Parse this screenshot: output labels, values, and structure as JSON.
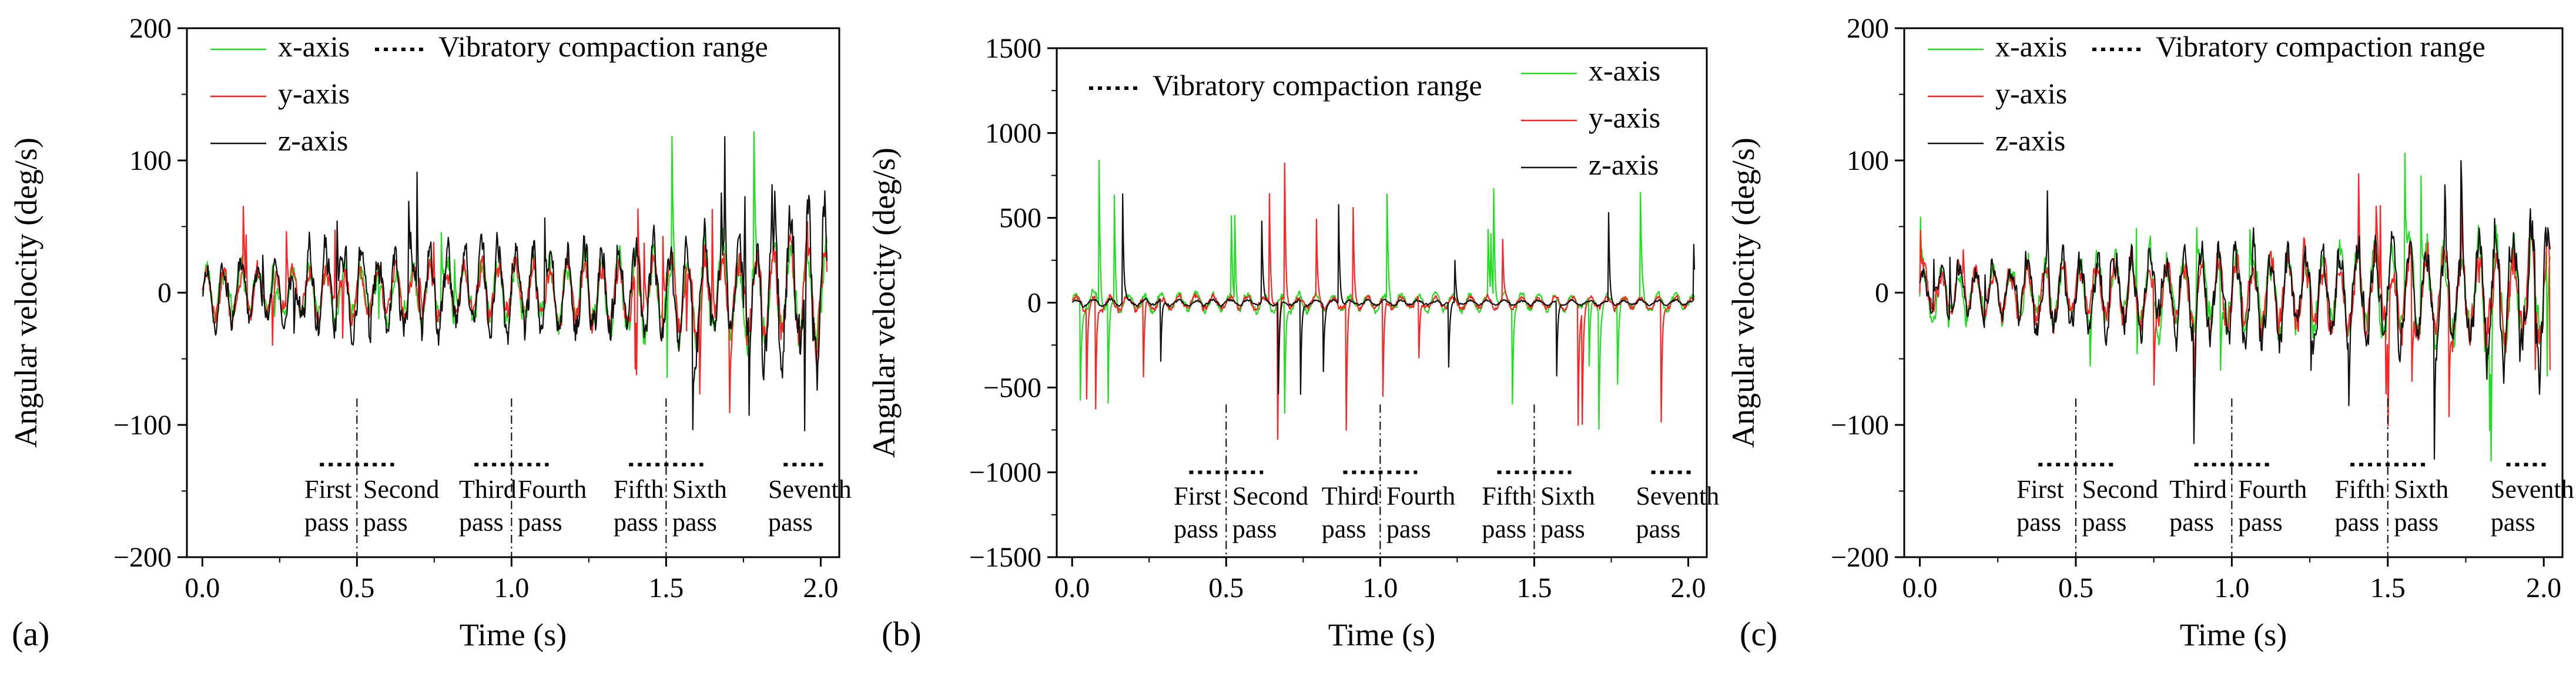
{
  "colors": {
    "x": "#22dd22",
    "y": "#ff2222",
    "z": "#111111",
    "axis": "#000000"
  },
  "chart_data": [
    {
      "type": "line",
      "panel_label": "(a)",
      "xlabel": "Time (s)",
      "ylabel": "Angular velocity (deg/s)",
      "xlim": [
        -0.05,
        2.06
      ],
      "ylim": [
        -200,
        200
      ],
      "xticks": [
        0.0,
        0.5,
        1.0,
        1.5,
        2.0
      ],
      "xtick_labels": [
        "0.0",
        "0.5",
        "1.0",
        "1.5",
        "2.0"
      ],
      "yticks": [
        -200,
        -100,
        0,
        100,
        200
      ],
      "ytick_labels": [
        "−200",
        "−100",
        "0",
        "100",
        "200"
      ],
      "legend": {
        "position": "top",
        "series_labels": [
          "x-axis",
          "y-axis",
          "z-axis"
        ],
        "range_label": "Vibratory compaction range"
      },
      "series": [
        {
          "name": "x-axis",
          "color_key": "x",
          "seed": 11,
          "amp": 32,
          "spike_amp": 75,
          "env": [
            0.7,
            0.75,
            0.8,
            0.9,
            1.1,
            1.3,
            1.4
          ],
          "bias": 0
        },
        {
          "name": "y-axis",
          "color_key": "y",
          "seed": 23,
          "amp": 30,
          "spike_amp": 72,
          "env": [
            0.7,
            0.8,
            0.8,
            0.9,
            1.0,
            1.2,
            1.4
          ],
          "bias": 0
        },
        {
          "name": "z-axis",
          "color_key": "z",
          "seed": 37,
          "amp": 42,
          "spike_amp": 80,
          "env": [
            0.6,
            0.9,
            1.0,
            1.0,
            1.0,
            1.1,
            1.8
          ],
          "bias": 0
        }
      ],
      "ranges": [
        {
          "x0": 0.38,
          "x1": 0.62,
          "y": -130
        },
        {
          "x0": 0.88,
          "x1": 1.12,
          "y": -130
        },
        {
          "x0": 1.38,
          "x1": 1.62,
          "y": -130
        },
        {
          "x0": 1.88,
          "x1": 2.02,
          "y": -130
        }
      ],
      "dividers": [
        {
          "x": 0.5,
          "y0": -80,
          "y1": -200
        },
        {
          "x": 1.0,
          "y0": -80,
          "y1": -200
        },
        {
          "x": 1.5,
          "y0": -80,
          "y1": -200
        }
      ],
      "annotations": [
        {
          "text": [
            "First",
            "pass"
          ],
          "x": 0.33,
          "y": -155,
          "anchor": "start"
        },
        {
          "text": [
            "Second",
            "pass"
          ],
          "x": 0.52,
          "y": -155,
          "anchor": "start"
        },
        {
          "text": [
            "Third",
            "pass"
          ],
          "x": 0.83,
          "y": -155,
          "anchor": "start"
        },
        {
          "text": [
            "Fourth",
            "pass"
          ],
          "x": 1.02,
          "y": -155,
          "anchor": "start"
        },
        {
          "text": [
            "Fifth",
            "pass"
          ],
          "x": 1.33,
          "y": -155,
          "anchor": "start"
        },
        {
          "text": [
            "Sixth",
            "pass"
          ],
          "x": 1.52,
          "y": -155,
          "anchor": "start"
        },
        {
          "text": [
            "Seventh",
            "pass"
          ],
          "x": 1.83,
          "y": -155,
          "anchor": "start"
        }
      ]
    },
    {
      "type": "line",
      "panel_label": "(b)",
      "xlabel": "Time (s)",
      "ylabel": "Angular velocity (deg/s)",
      "xlim": [
        -0.05,
        2.06
      ],
      "ylim": [
        -1500,
        1500
      ],
      "xticks": [
        0.0,
        0.5,
        1.0,
        1.5,
        2.0
      ],
      "xtick_labels": [
        "0.0",
        "0.5",
        "1.0",
        "1.5",
        "2.0"
      ],
      "yticks": [
        -1500,
        -1000,
        -500,
        0,
        500,
        1000,
        1500
      ],
      "ytick_labels": [
        "−1500",
        "−1000",
        "−500",
        "0",
        "500",
        "1000",
        "1500"
      ],
      "legend": {
        "position": "top",
        "series_labels": [
          "x-axis",
          "y-axis",
          "z-axis"
        ],
        "range_label": "Vibratory compaction range"
      },
      "series": [
        {
          "name": "x-axis",
          "color_key": "x",
          "seed": 51,
          "amp": 70,
          "spike_amp": 850,
          "env": [
            1.0,
            0.9,
            0.9,
            0.8,
            0.8,
            0.8,
            0.8
          ],
          "bias": 0
        },
        {
          "name": "y-axis",
          "color_key": "y",
          "seed": 63,
          "amp": 55,
          "spike_amp": 850,
          "env": [
            1.0,
            0.9,
            0.9,
            0.8,
            0.8,
            0.8,
            0.8
          ],
          "bias": 0
        },
        {
          "name": "z-axis",
          "color_key": "z",
          "seed": 77,
          "amp": 25,
          "spike_amp": 700,
          "env": [
            1.0,
            0.9,
            0.8,
            0.8,
            0.7,
            0.7,
            0.7
          ],
          "bias": 0
        }
      ],
      "ranges": [
        {
          "x0": 0.38,
          "x1": 0.62,
          "y": -1000
        },
        {
          "x0": 0.88,
          "x1": 1.12,
          "y": -1000
        },
        {
          "x0": 1.38,
          "x1": 1.62,
          "y": -1000
        },
        {
          "x0": 1.88,
          "x1": 2.02,
          "y": -1000
        }
      ],
      "dividers": [
        {
          "x": 0.5,
          "y0": -600,
          "y1": -1500
        },
        {
          "x": 1.0,
          "y0": -600,
          "y1": -1500
        },
        {
          "x": 1.5,
          "y0": -600,
          "y1": -1500
        }
      ],
      "annotations": [
        {
          "text": [
            "First",
            "pass"
          ],
          "x": 0.33,
          "y": -1190,
          "anchor": "start"
        },
        {
          "text": [
            "Second",
            "pass"
          ],
          "x": 0.52,
          "y": -1190,
          "anchor": "start"
        },
        {
          "text": [
            "Third",
            "pass"
          ],
          "x": 0.81,
          "y": -1190,
          "anchor": "start"
        },
        {
          "text": [
            "Fourth",
            "pass"
          ],
          "x": 1.02,
          "y": -1190,
          "anchor": "start"
        },
        {
          "text": [
            "Fifth",
            "pass"
          ],
          "x": 1.33,
          "y": -1190,
          "anchor": "start"
        },
        {
          "text": [
            "Sixth",
            "pass"
          ],
          "x": 1.52,
          "y": -1190,
          "anchor": "start"
        },
        {
          "text": [
            "Seventh",
            "pass"
          ],
          "x": 1.83,
          "y": -1190,
          "anchor": "start"
        }
      ]
    },
    {
      "type": "line",
      "panel_label": "(c)",
      "xlabel": "Time (s)",
      "ylabel": "Angular velocity (deg/s)",
      "xlim": [
        -0.05,
        2.06
      ],
      "ylim": [
        -200,
        200
      ],
      "xticks": [
        0.0,
        0.5,
        1.0,
        1.5,
        2.0
      ],
      "xtick_labels": [
        "0.0",
        "0.5",
        "1.0",
        "1.5",
        "2.0"
      ],
      "yticks": [
        -200,
        -100,
        0,
        100,
        200
      ],
      "ytick_labels": [
        "−200",
        "−100",
        "0",
        "100",
        "200"
      ],
      "legend": {
        "position": "top",
        "series_labels": [
          "x-axis",
          "y-axis",
          "z-axis"
        ],
        "range_label": "Vibratory compaction range"
      },
      "series": [
        {
          "name": "x-axis",
          "color_key": "x",
          "seed": 91,
          "amp": 34,
          "spike_amp": 80,
          "env": [
            0.7,
            0.8,
            0.9,
            1.0,
            1.2,
            1.3,
            1.4
          ],
          "bias": 0
        },
        {
          "name": "y-axis",
          "color_key": "y",
          "seed": 103,
          "amp": 32,
          "spike_amp": 75,
          "env": [
            0.7,
            0.8,
            0.9,
            1.0,
            1.1,
            1.2,
            1.4
          ],
          "bias": 0
        },
        {
          "name": "z-axis",
          "color_key": "z",
          "seed": 117,
          "amp": 40,
          "spike_amp": 80,
          "env": [
            0.6,
            0.9,
            1.0,
            1.0,
            1.0,
            1.1,
            1.8
          ],
          "bias": 0
        }
      ],
      "ranges": [
        {
          "x0": 0.38,
          "x1": 0.62,
          "y": -130
        },
        {
          "x0": 0.88,
          "x1": 1.12,
          "y": -130
        },
        {
          "x0": 1.38,
          "x1": 1.62,
          "y": -130
        },
        {
          "x0": 1.88,
          "x1": 2.02,
          "y": -130
        }
      ],
      "dividers": [
        {
          "x": 0.5,
          "y0": -80,
          "y1": -200
        },
        {
          "x": 1.0,
          "y0": -80,
          "y1": -200
        },
        {
          "x": 1.5,
          "y0": -80,
          "y1": -200
        }
      ],
      "annotations": [
        {
          "text": [
            "First",
            "pass"
          ],
          "x": 0.31,
          "y": -155,
          "anchor": "start"
        },
        {
          "text": [
            "Second",
            "pass"
          ],
          "x": 0.52,
          "y": -155,
          "anchor": "start"
        },
        {
          "text": [
            "Third",
            "pass"
          ],
          "x": 0.8,
          "y": -155,
          "anchor": "start"
        },
        {
          "text": [
            "Fourth",
            "pass"
          ],
          "x": 1.02,
          "y": -155,
          "anchor": "start"
        },
        {
          "text": [
            "Fifth",
            "pass"
          ],
          "x": 1.33,
          "y": -155,
          "anchor": "start"
        },
        {
          "text": [
            "Sixth",
            "pass"
          ],
          "x": 1.52,
          "y": -155,
          "anchor": "start"
        },
        {
          "text": [
            "Seventh",
            "pass"
          ],
          "x": 1.83,
          "y": -155,
          "anchor": "start"
        }
      ]
    }
  ]
}
